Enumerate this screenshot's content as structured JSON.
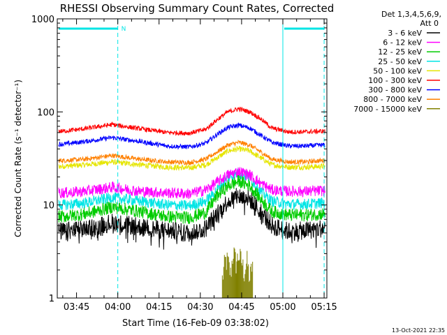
{
  "chart_data": {
    "type": "line",
    "title": "RHESSI Observing Summary Count Rates, Corrected",
    "xlabel": "Start Time (16-Feb-09 03:38:02)",
    "ylabel": "Corrected Count Rate (s⁻¹ detector⁻¹)",
    "yscale": "log",
    "ylim": [
      1,
      1000
    ],
    "xlim_minutes": [
      0,
      98
    ],
    "x_ticks": [
      {
        "t": 7,
        "label": "03:45"
      },
      {
        "t": 22,
        "label": "04:00"
      },
      {
        "t": 37,
        "label": "04:15"
      },
      {
        "t": 52,
        "label": "04:30"
      },
      {
        "t": 67,
        "label": "04:45"
      },
      {
        "t": 82,
        "label": "05:00"
      },
      {
        "t": 97,
        "label": "05:15"
      }
    ],
    "y_ticks": [
      {
        "v": 1,
        "label": "1"
      },
      {
        "v": 10,
        "label": "10"
      },
      {
        "v": 100,
        "label": "100"
      },
      {
        "v": 1000,
        "label": "1000"
      }
    ],
    "legend": {
      "header": [
        "Det 1,3,4,5,6,9,",
        "Att 0"
      ],
      "position": "right"
    },
    "series": [
      {
        "name": "3 - 6 keV",
        "color": "#000000",
        "t": [
          2,
          10,
          20,
          30,
          40,
          48,
          54,
          58,
          62,
          66,
          70,
          74,
          78,
          84,
          90,
          96
        ],
        "values": [
          5.2,
          5.5,
          6.5,
          5.8,
          5.3,
          5.0,
          5.6,
          8.0,
          11.0,
          12.5,
          11.5,
          8.5,
          6.0,
          5.2,
          5.3,
          5.6
        ],
        "noise": 0.1,
        "style": "spiky"
      },
      {
        "name": "6 - 12 keV",
        "color": "#ff00ff",
        "t": [
          2,
          10,
          20,
          30,
          40,
          48,
          54,
          58,
          62,
          66,
          70,
          74,
          78,
          84,
          90,
          96
        ],
        "values": [
          13.5,
          14,
          15.5,
          14,
          13.5,
          13.2,
          14.5,
          17.5,
          21,
          23,
          21,
          17,
          14.5,
          14,
          14,
          14.2
        ],
        "noise": 0.06
      },
      {
        "name": "12 - 25 keV",
        "color": "#00cc00",
        "t": [
          2,
          10,
          20,
          30,
          40,
          48,
          54,
          58,
          62,
          66,
          70,
          74,
          78,
          84,
          90,
          96
        ],
        "values": [
          7.5,
          8,
          9.5,
          8.5,
          7.5,
          7.3,
          8.3,
          12.5,
          16,
          18,
          16,
          11.5,
          8.5,
          7.8,
          7.8,
          8
        ],
        "noise": 0.07
      },
      {
        "name": "25 - 50 keV",
        "color": "#00e5e5",
        "t": [
          2,
          10,
          20,
          30,
          40,
          48,
          54,
          58,
          62,
          66,
          70,
          74,
          78,
          84,
          90,
          96
        ],
        "values": [
          10,
          10.5,
          12,
          11,
          10,
          9.8,
          11,
          14.5,
          19.5,
          22,
          19.5,
          14,
          11,
          10.2,
          10.2,
          10.5
        ],
        "noise": 0.06
      },
      {
        "name": "50 - 100 keV",
        "color": "#e5e500",
        "t": [
          2,
          10,
          20,
          30,
          40,
          48,
          54,
          58,
          62,
          66,
          70,
          74,
          78,
          84,
          90,
          96
        ],
        "values": [
          26,
          27,
          29,
          27,
          25.5,
          25,
          27,
          32,
          38,
          40,
          38,
          32,
          27,
          25.5,
          25.5,
          26
        ],
        "noise": 0.03
      },
      {
        "name": "100 - 300 keV",
        "color": "#ff0000",
        "t": [
          2,
          10,
          20,
          30,
          40,
          48,
          54,
          58,
          62,
          66,
          70,
          74,
          78,
          84,
          90,
          96
        ],
        "values": [
          62,
          66,
          73,
          66,
          60,
          59,
          65,
          82,
          100,
          108,
          100,
          84,
          67,
          61,
          61,
          62
        ],
        "noise": 0.025
      },
      {
        "name": "300 - 800 keV",
        "color": "#0000ff",
        "t": [
          2,
          10,
          20,
          30,
          40,
          48,
          54,
          58,
          62,
          66,
          70,
          74,
          78,
          84,
          90,
          96
        ],
        "values": [
          45,
          48,
          53,
          48,
          43,
          42,
          46,
          57,
          68,
          72,
          67,
          56,
          47,
          43,
          43,
          44
        ],
        "noise": 0.025
      },
      {
        "name": "800 - 7000 keV",
        "color": "#ff8000",
        "t": [
          2,
          10,
          20,
          30,
          40,
          48,
          54,
          58,
          62,
          66,
          70,
          74,
          78,
          84,
          90,
          96
        ],
        "values": [
          30,
          31,
          34,
          31,
          29,
          28.5,
          31,
          37,
          44,
          47,
          44,
          37,
          31,
          29,
          29,
          30
        ],
        "noise": 0.025
      },
      {
        "name": "7000 - 15000 keV",
        "color": "#808000",
        "t": [
          60,
          61,
          62,
          63,
          64,
          65,
          66,
          67,
          68,
          69,
          70,
          71
        ],
        "values": [
          1.6,
          2.5,
          2.5,
          1.8,
          3.2,
          2.4,
          2.9,
          2.5,
          1.9,
          2.5,
          1.6,
          2.4
        ],
        "noise": 0.0,
        "style": "bars"
      }
    ],
    "annotations": {
      "night_segments_minutes": [
        [
          0,
          22
        ],
        [
          82,
          97
        ]
      ],
      "saa_flag": "N",
      "timestamp": "13-Oct-2021 22:35"
    },
    "colors": {
      "axis": "#000000",
      "night": "#00e5e5",
      "background": "#ffffff"
    }
  }
}
